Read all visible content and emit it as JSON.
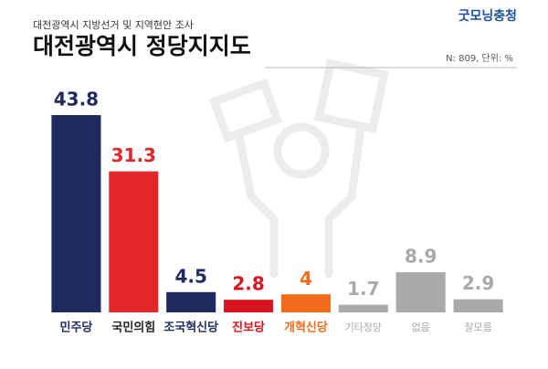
{
  "chart_data": {
    "type": "bar",
    "subtitle": "대전광역시 지방선거 및 지역현안 조사",
    "title": "대전광역시 정당지지도",
    "brand": "굿모닝충청",
    "note": "N: 809, 단위: %",
    "categories": [
      "민주당",
      "국민의힘",
      "조국혁신당",
      "진보당",
      "개혁신당",
      "기타정당",
      "없음",
      "잘모름"
    ],
    "values": [
      43.8,
      31.3,
      4.5,
      2.8,
      4.0,
      1.7,
      8.9,
      2.9
    ],
    "colors": [
      "#1f2a5e",
      "#e2262b",
      "#1f2a5e",
      "#d9141e",
      "#f26a1b",
      "#a9a9a9",
      "#a9a9a9",
      "#a9a9a9"
    ]
  }
}
